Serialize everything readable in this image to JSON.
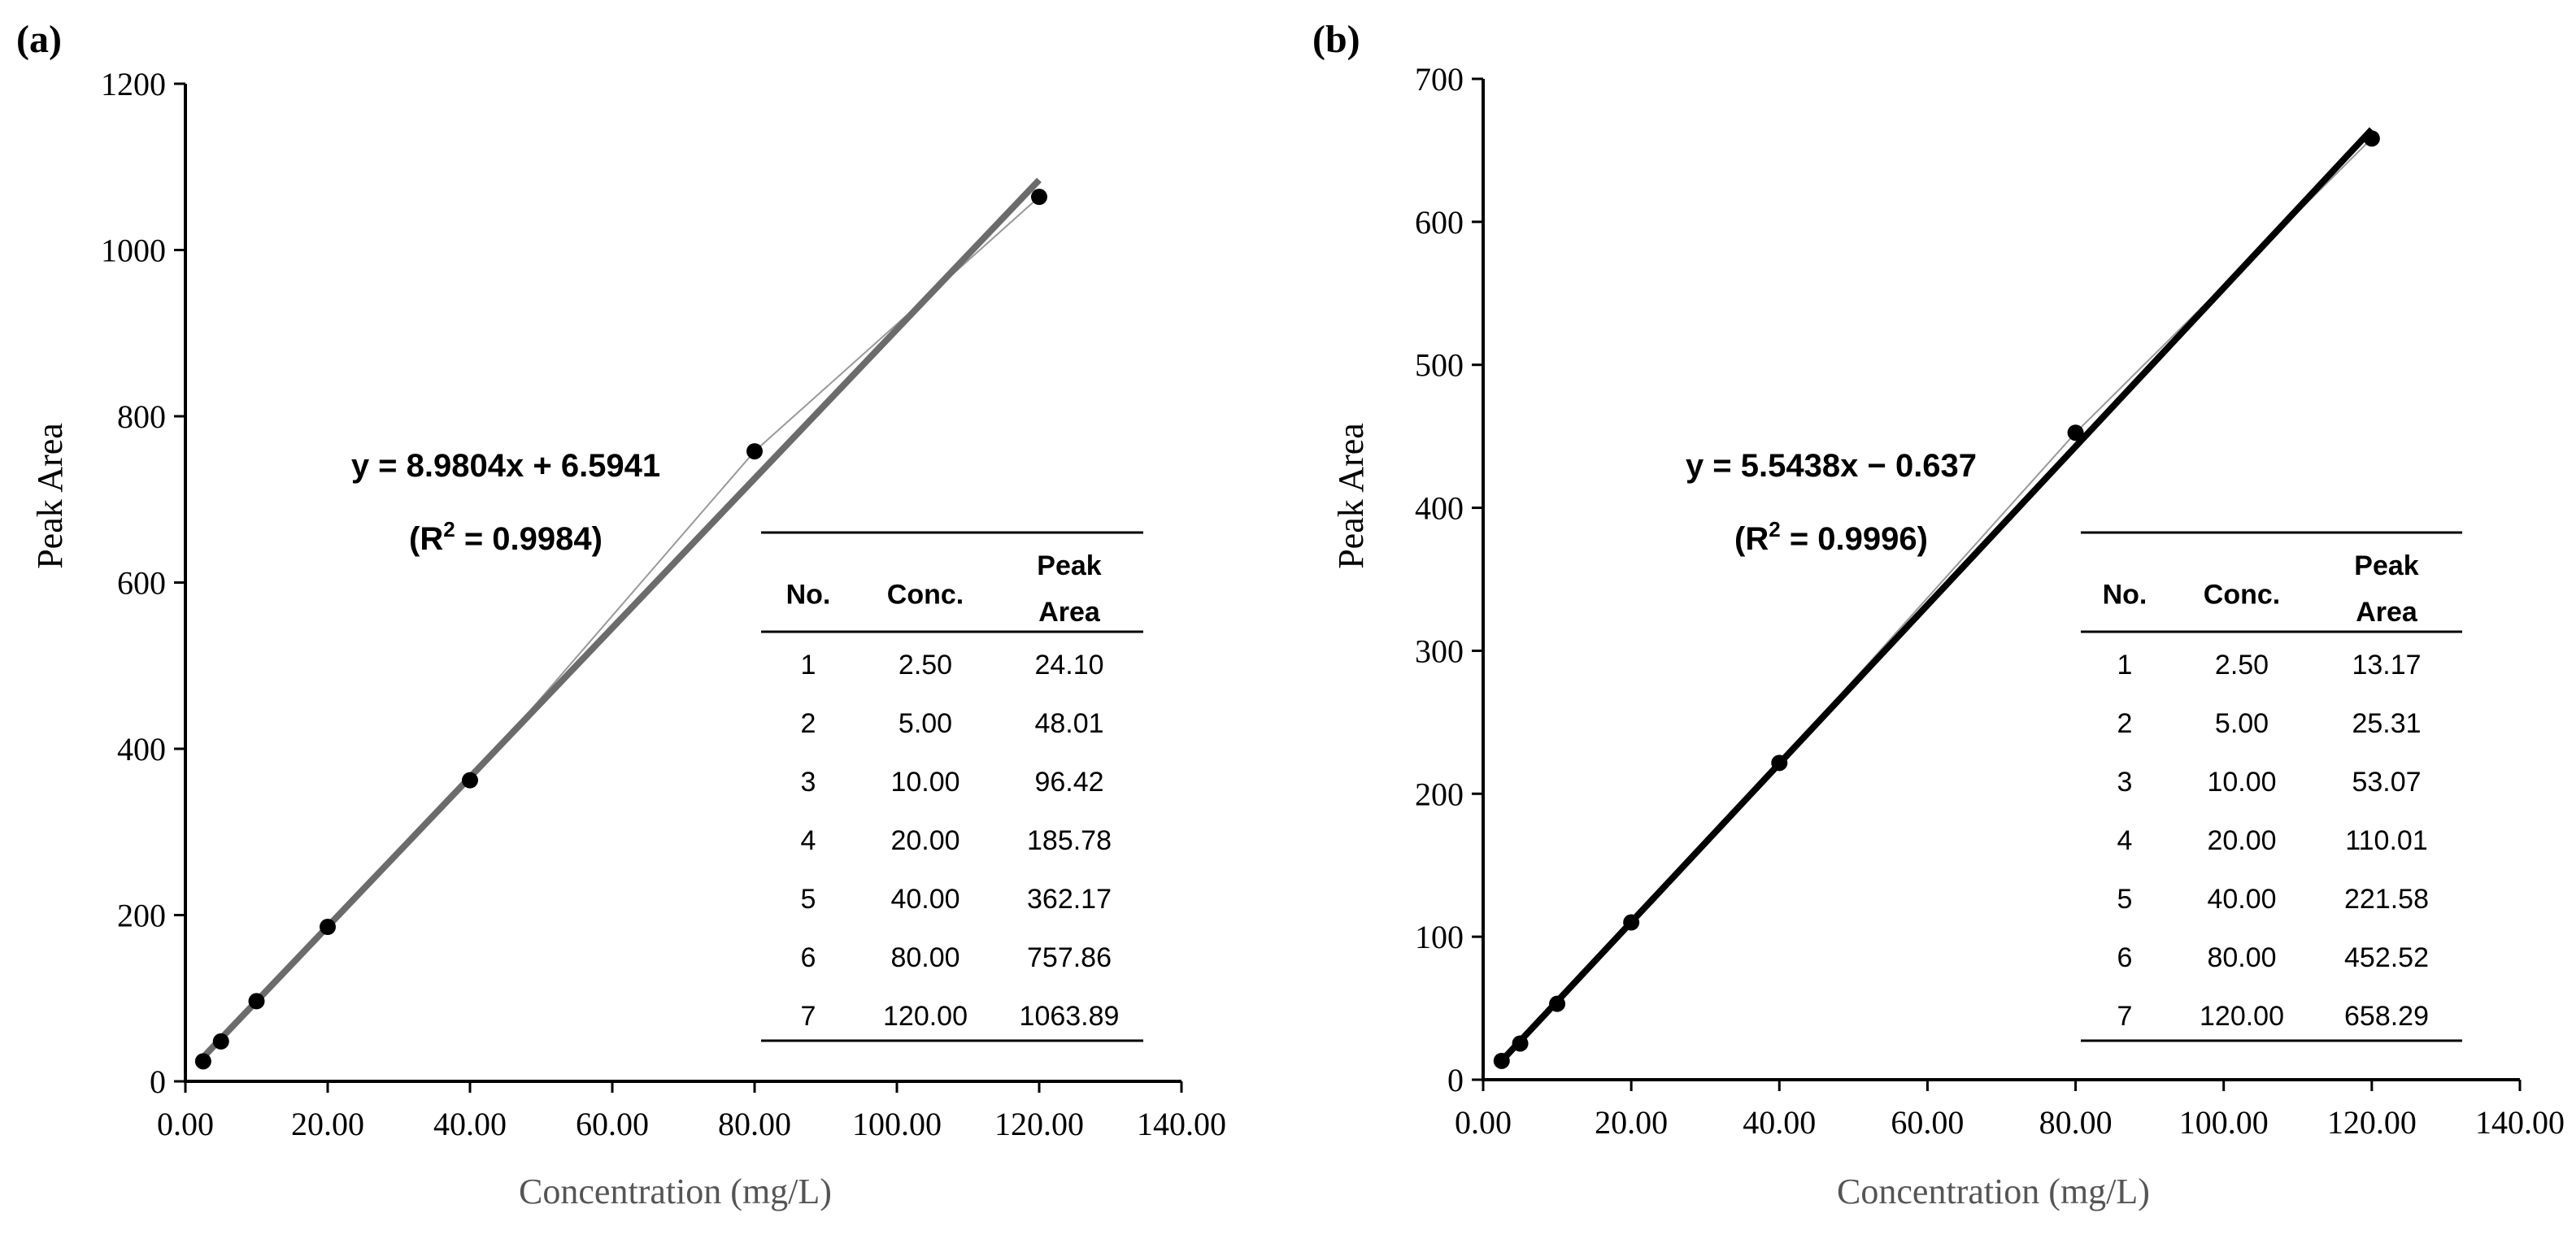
{
  "chart_data": [
    {
      "type": "scatter",
      "panel_label": "(a)",
      "xlabel": "Concentration (mg/L)",
      "ylabel": "Peak Area",
      "xlim": [
        0,
        140
      ],
      "ylim": [
        0,
        1200
      ],
      "xticks": [
        0,
        20,
        40,
        60,
        80,
        100,
        120,
        140
      ],
      "xtick_labels": [
        "0.00",
        "20.00",
        "40.00",
        "60.00",
        "80.00",
        "100.00",
        "120.00",
        "140.00"
      ],
      "yticks": [
        0,
        200,
        400,
        600,
        800,
        1000,
        1200
      ],
      "ytick_labels": [
        "0",
        "200",
        "400",
        "600",
        "800",
        "1000",
        "1200"
      ],
      "x": [
        2.5,
        5,
        10,
        20,
        40,
        80,
        120
      ],
      "y": [
        24.1,
        48.01,
        96.42,
        185.78,
        362.17,
        757.86,
        1063.89
      ],
      "fit": {
        "slope": 8.9804,
        "intercept": 6.5941,
        "color": "#6b6b6b"
      },
      "equation": "y = 8.9804x + 6.5941",
      "r2_label": "(R",
      "r2_sup": "2",
      "r2_value": " = 0.9984)",
      "table": {
        "headers": [
          "No.",
          "Conc.",
          "Peak",
          "Area"
        ],
        "rows": [
          [
            "1",
            "2.50",
            "24.10"
          ],
          [
            "2",
            "5.00",
            "48.01"
          ],
          [
            "3",
            "10.00",
            "96.42"
          ],
          [
            "4",
            "20.00",
            "185.78"
          ],
          [
            "5",
            "40.00",
            "362.17"
          ],
          [
            "6",
            "80.00",
            "757.86"
          ],
          [
            "7",
            "120.00",
            "1063.89"
          ]
        ]
      }
    },
    {
      "type": "scatter",
      "panel_label": "(b)",
      "xlabel": "Concentration (mg/L)",
      "ylabel": "Peak Area",
      "xlim": [
        0,
        140
      ],
      "ylim": [
        0,
        700
      ],
      "xticks": [
        0,
        20,
        40,
        60,
        80,
        100,
        120,
        140
      ],
      "xtick_labels": [
        "0.00",
        "20.00",
        "40.00",
        "60.00",
        "80.00",
        "100.00",
        "120.00",
        "140.00"
      ],
      "yticks": [
        0,
        100,
        200,
        300,
        400,
        500,
        600,
        700
      ],
      "ytick_labels": [
        "0",
        "100",
        "200",
        "300",
        "400",
        "500",
        "600",
        "700"
      ],
      "x": [
        2.5,
        5,
        10,
        20,
        40,
        80,
        120
      ],
      "y": [
        13.17,
        25.31,
        53.07,
        110.01,
        221.58,
        452.52,
        658.29
      ],
      "fit": {
        "slope": 5.5438,
        "intercept": -0.637,
        "color": "#000000"
      },
      "equation": "y = 5.5438x − 0.637",
      "r2_label": "(R",
      "r2_sup": "2",
      "r2_value": " = 0.9996)",
      "table": {
        "headers": [
          "No.",
          "Conc.",
          "Peak",
          "Area"
        ],
        "rows": [
          [
            "1",
            "2.50",
            "13.17"
          ],
          [
            "2",
            "5.00",
            "25.31"
          ],
          [
            "3",
            "10.00",
            "53.07"
          ],
          [
            "4",
            "20.00",
            "110.01"
          ],
          [
            "5",
            "40.00",
            "221.58"
          ],
          [
            "6",
            "80.00",
            "452.52"
          ],
          [
            "7",
            "120.00",
            "658.29"
          ]
        ]
      }
    }
  ]
}
